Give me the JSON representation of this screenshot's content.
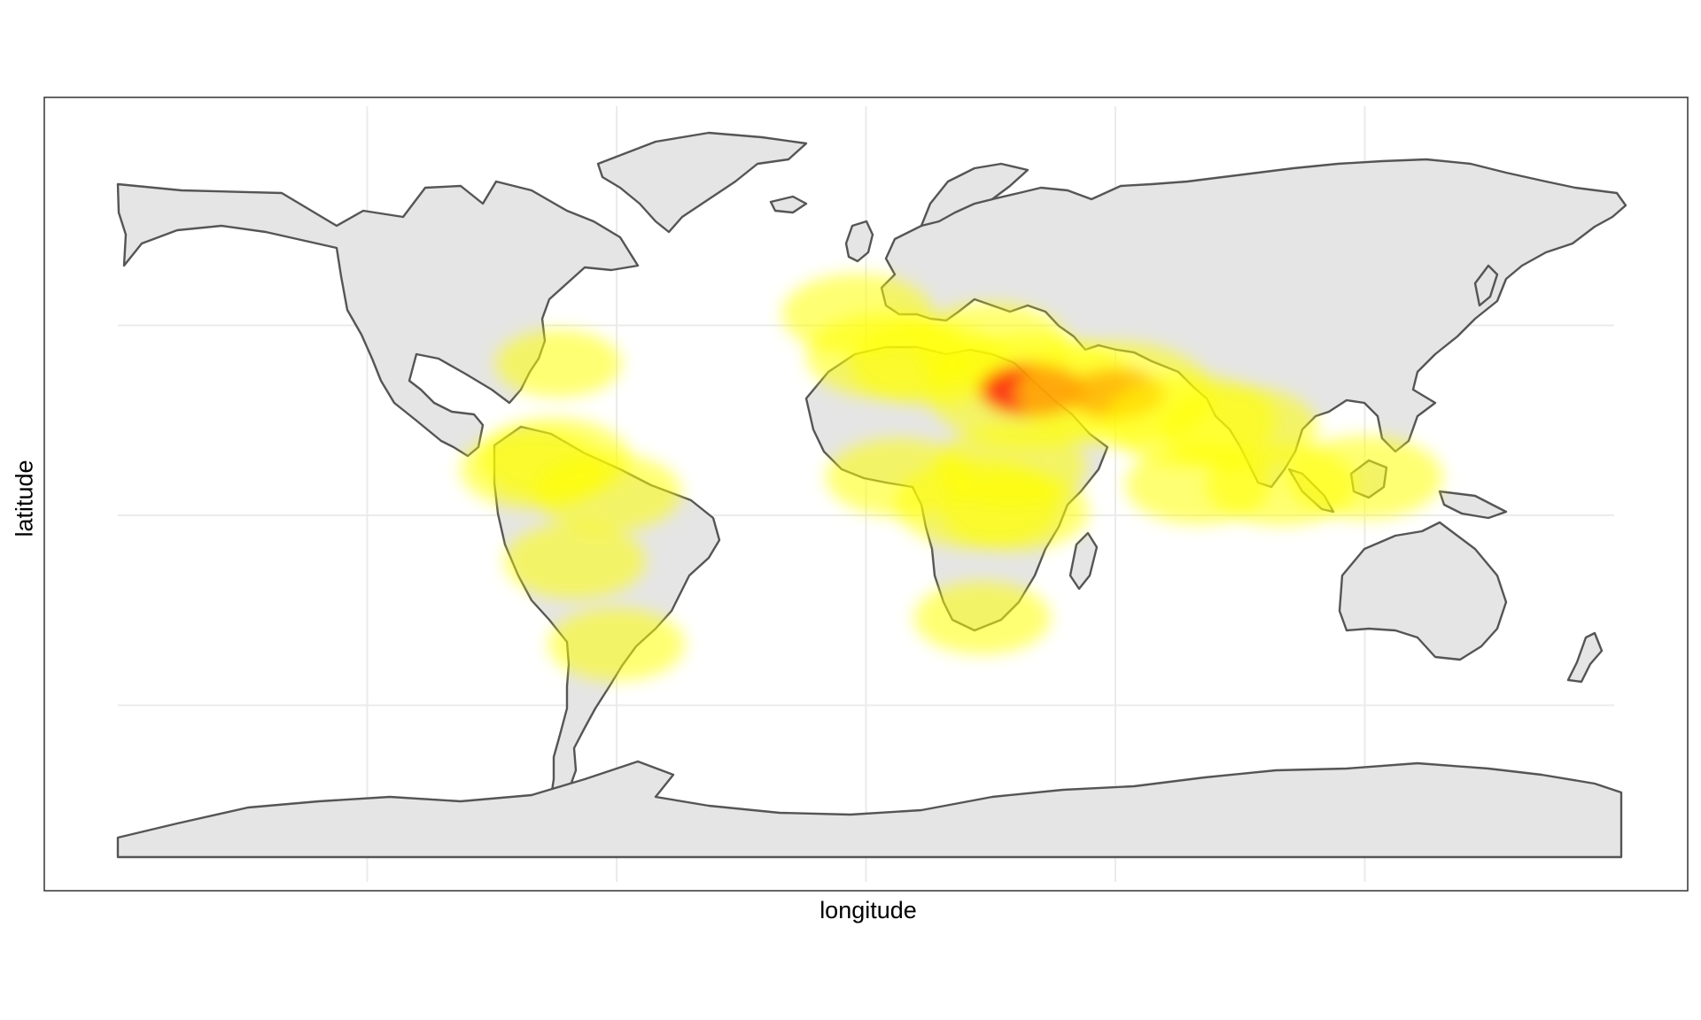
{
  "chart_data": {
    "type": "heatmap",
    "title": "",
    "xlabel": "longitude",
    "ylabel": "latitude",
    "xlim": [
      -180,
      180
    ],
    "ylim": [
      -90,
      90
    ],
    "grid": true,
    "legend": "none",
    "density_points": [
      {
        "lon": 27,
        "lat": 3,
        "intensity": 0.55
      },
      {
        "lon": -80,
        "lat": 12,
        "intensity": 0.35
      },
      {
        "lon": -75,
        "lat": 15,
        "intensity": 0.4
      },
      {
        "lon": -62,
        "lat": 6,
        "intensity": 0.35
      },
      {
        "lon": -70,
        "lat": -12,
        "intensity": 0.3
      },
      {
        "lon": -60,
        "lat": -34,
        "intensity": 0.25
      },
      {
        "lon": -74,
        "lat": 40,
        "intensity": 0.15
      },
      {
        "lon": -2,
        "lat": 53,
        "intensity": 0.4
      },
      {
        "lon": 5,
        "lat": 42,
        "intensity": 0.5
      },
      {
        "lon": 15,
        "lat": 40,
        "intensity": 0.45
      },
      {
        "lon": 30,
        "lat": 45,
        "intensity": 0.45
      },
      {
        "lon": 40,
        "lat": 33,
        "intensity": 1.0
      },
      {
        "lon": 60,
        "lat": 32,
        "intensity": 0.85
      },
      {
        "lon": 78,
        "lat": 25,
        "intensity": 0.6
      },
      {
        "lon": 90,
        "lat": 23,
        "intensity": 0.45
      },
      {
        "lon": 8,
        "lat": 10,
        "intensity": 0.35
      },
      {
        "lon": 35,
        "lat": 13,
        "intensity": 0.4
      },
      {
        "lon": 36,
        "lat": 1,
        "intensity": 0.35
      },
      {
        "lon": 28,
        "lat": -27,
        "intensity": 0.25
      },
      {
        "lon": 80,
        "lat": 8,
        "intensity": 0.35
      },
      {
        "lon": 100,
        "lat": 8,
        "intensity": 0.4
      },
      {
        "lon": 120,
        "lat": 10,
        "intensity": 0.45
      }
    ],
    "palette": {
      "low": "#ffff00",
      "mid": "#ffa500",
      "high": "#ff0000",
      "land_fill": "#e5e5e5",
      "border": "#555555",
      "grid": "#ebebeb"
    }
  }
}
